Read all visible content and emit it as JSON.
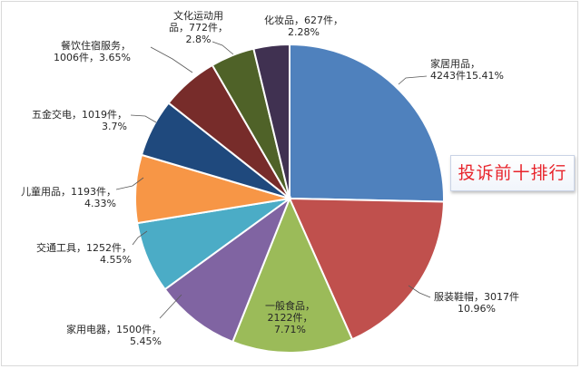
{
  "chart_data": {
    "type": "pie",
    "slices": [
      {
        "category": "家居用品",
        "count_label": "4243件",
        "percent_label": "15.41%",
        "percent": 15.41,
        "color": "#4f81bd"
      },
      {
        "category": "服装鞋帽",
        "count_label": "3017件",
        "percent_label": "10.96%",
        "percent": 10.96,
        "color": "#c0504d"
      },
      {
        "category": "一般食品",
        "count_label": "2122件，",
        "percent_label": "7.71%",
        "percent": 7.71,
        "color": "#9bbb59"
      },
      {
        "category": "家用电器",
        "count_label": "1500件",
        "percent_label": "5.45%",
        "percent": 5.45,
        "color": "#8064a2"
      },
      {
        "category": "交通工具",
        "count_label": "1252件",
        "percent_label": "4.55%",
        "percent": 4.55,
        "color": "#4bacc6"
      },
      {
        "category": "儿童用品",
        "count_label": "1193件",
        "percent_label": "4.33%",
        "percent": 4.33,
        "color": "#f79646"
      },
      {
        "category": "五金交电",
        "count_label": "1019件",
        "percent_label": "3.7%",
        "percent": 3.7,
        "color": "#1f497d"
      },
      {
        "category": "餐饮住宿服务",
        "count_label": "1006件",
        "percent_label": "3.65%",
        "percent": 3.65,
        "color": "#772c2a"
      },
      {
        "category": "文化运动用品",
        "count_label": "772件",
        "percent_label": "2.8%",
        "percent": 2.8,
        "color": "#4f6228"
      },
      {
        "category": "化妆品",
        "count_label": "627件",
        "percent_label": "2.28%",
        "percent": 2.28,
        "color": "#403151"
      }
    ],
    "legend": "none"
  },
  "labels": {
    "jiaju": {
      "line1": "家居用品，",
      "line2": "4243件15.41%"
    },
    "fuzhuang": {
      "line1": "服装鞋帽，3017件",
      "line2": "10.96%"
    },
    "shipin": {
      "line1": "一般食品，",
      "line2": "2122件，",
      "line3": "7.71%"
    },
    "dianqi": {
      "line1": "家用电器，1500件，",
      "line2": "5.45%"
    },
    "jiaotong": {
      "line1": "交通工具，1252件，",
      "line2": "4.55%"
    },
    "ertong": {
      "line1": "儿童用品，1193件，",
      "line2": "4.33%"
    },
    "wujin": {
      "line1": "五金交电，1019件，",
      "line2": "3.7%"
    },
    "canyin": {
      "line1": "餐饮住宿服务，",
      "line2": "1006件，3.65%"
    },
    "wenhua": {
      "line1": "文化运动用",
      "line2": "品，772件，",
      "line3": "2.8%"
    },
    "huazhuang": {
      "line1": "化妆品，627件，",
      "line2": "2.28%"
    }
  },
  "annotation": "投诉前十排行"
}
